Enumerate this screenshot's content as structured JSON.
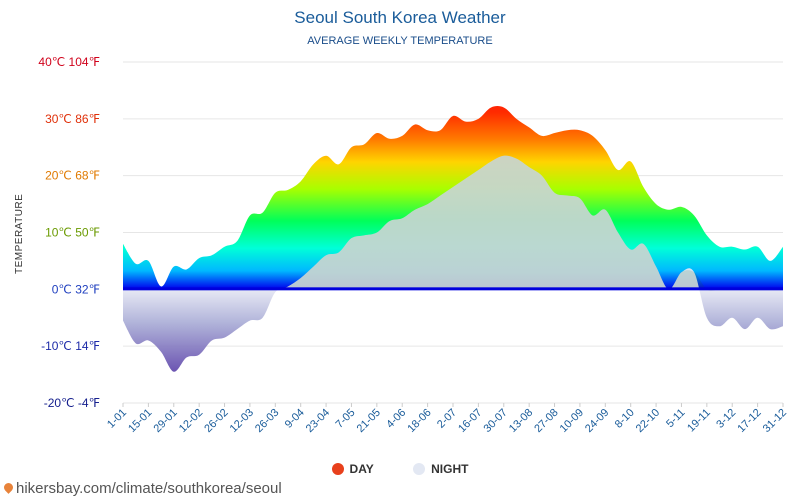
{
  "header": {
    "title": "Seoul South Korea Weather",
    "subtitle": "AVERAGE WEEKLY TEMPERATURE"
  },
  "legend": {
    "day": "DAY",
    "night": "NIGHT",
    "day_color": "#e8401c",
    "night_color": "#e3e8f3"
  },
  "footer": {
    "source": "hikersbay.com/climate/southkorea/seoul"
  },
  "chart_data": {
    "type": "area",
    "ylabel": "TEMPERATURE",
    "ylim": [
      -20,
      40
    ],
    "y_ticks": [
      {
        "value": 40,
        "label": "40℃ 104℉",
        "color": "#d0021b"
      },
      {
        "value": 30,
        "label": "30℃ 86℉",
        "color": "#e0300a"
      },
      {
        "value": 20,
        "label": "20℃ 68℉",
        "color": "#e07a00"
      },
      {
        "value": 10,
        "label": "10℃ 50℉",
        "color": "#6a9a00"
      },
      {
        "value": 0,
        "label": "0℃ 32℉",
        "color": "#1f3fbf"
      },
      {
        "value": -10,
        "label": "-10℃ 14℉",
        "color": "#1c2aa8"
      },
      {
        "value": -20,
        "label": "-20℃ -4℉",
        "color": "#16208e"
      }
    ],
    "x_labels": [
      "1-01",
      "15-01",
      "29-01",
      "12-02",
      "26-02",
      "12-03",
      "26-03",
      "9-04",
      "23-04",
      "7-05",
      "21-05",
      "4-06",
      "18-06",
      "2-07",
      "16-07",
      "30-07",
      "13-08",
      "27-08",
      "10-09",
      "24-09",
      "8-10",
      "22-10",
      "5-11",
      "19-11",
      "3-12",
      "17-12",
      "31-12"
    ],
    "series": [
      {
        "name": "DAY",
        "values": [
          8,
          4.5,
          5,
          0.5,
          4,
          3.5,
          5.5,
          6,
          7.5,
          8.5,
          13,
          13.5,
          17,
          17.5,
          19,
          22,
          23.5,
          22,
          25,
          25.5,
          27.5,
          26.5,
          27,
          29,
          28,
          28,
          30.5,
          29.5,
          30,
          32,
          32,
          30,
          28.5,
          27,
          27.5,
          28,
          28,
          27,
          24.5,
          21,
          22.5,
          18,
          15,
          14,
          14.5,
          13,
          9.5,
          7.5,
          7.5,
          7,
          7.5,
          5,
          7.5
        ]
      },
      {
        "name": "NIGHT",
        "values": [
          -5.5,
          -9.5,
          -9,
          -11,
          -14.5,
          -12,
          -11.5,
          -9,
          -8.5,
          -7,
          -5.5,
          -5,
          -0.5,
          0.5,
          2,
          4,
          6,
          6.5,
          9,
          9.5,
          10,
          12,
          12.5,
          14,
          15,
          16.5,
          18,
          19.5,
          21,
          22.5,
          23.5,
          23,
          21.5,
          20,
          17,
          16.5,
          16,
          13,
          14,
          10,
          7,
          8,
          4,
          0,
          3,
          3,
          -5,
          -6.5,
          -5,
          -7,
          -5,
          -7,
          -6.5
        ]
      }
    ],
    "grid": true
  }
}
